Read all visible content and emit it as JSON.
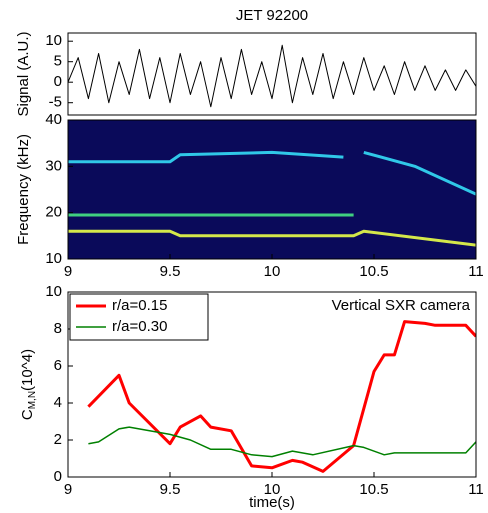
{
  "chart_data": [
    {
      "type": "line",
      "title": "JET 92200",
      "ylabel": "Signal (A.U.)",
      "xlim": [
        9,
        11
      ],
      "ylim": [
        -8,
        12
      ],
      "yticks": [
        -5,
        0,
        5,
        10
      ],
      "series": [
        {
          "color": "#000000",
          "x": [
            9,
            9.05,
            9.1,
            9.15,
            9.2,
            9.25,
            9.3,
            9.35,
            9.4,
            9.45,
            9.5,
            9.55,
            9.6,
            9.65,
            9.7,
            9.75,
            9.8,
            9.85,
            9.9,
            9.95,
            10,
            10.05,
            10.1,
            10.15,
            10.2,
            10.25,
            10.3,
            10.35,
            10.4,
            10.45,
            10.5,
            10.55,
            10.6,
            10.65,
            10.7,
            10.75,
            10.8,
            10.85,
            10.9,
            10.95,
            11
          ],
          "values": [
            0,
            6,
            -4,
            7,
            -5,
            5,
            -3,
            8,
            -4,
            6,
            -5,
            7,
            -3,
            5,
            -6,
            6,
            -4,
            8,
            -3,
            5,
            -4,
            9,
            -5,
            6,
            -3,
            7,
            -4,
            5,
            -3,
            6,
            -2,
            4,
            -3,
            5,
            -2,
            4,
            -2,
            3,
            -2,
            3,
            -1
          ]
        }
      ]
    },
    {
      "type": "spectrogram",
      "ylabel": "Frequency (kHz)",
      "xlim": [
        9,
        11
      ],
      "ylim": [
        10,
        40
      ],
      "yticks": [
        10,
        20,
        30,
        40
      ],
      "xticks": [
        9,
        9.5,
        10,
        10.5,
        11
      ],
      "background": "#0a0a5a",
      "series": [
        {
          "color": "#d4e84a",
          "x": [
            9,
            9.5,
            9.55,
            10.4,
            10.45,
            11
          ],
          "values": [
            16,
            16,
            15,
            15,
            16,
            13
          ]
        },
        {
          "color": "#40d080",
          "x": [
            9,
            9.5,
            9.55,
            10.4
          ],
          "values": [
            19.5,
            19.5,
            19.5,
            19.5
          ]
        },
        {
          "color": "#30c8e8",
          "x": [
            9,
            9.5,
            9.55,
            10,
            10.35
          ],
          "values": [
            31,
            31,
            32.5,
            33,
            32
          ]
        },
        {
          "color": "#30c8e8",
          "x": [
            10.45,
            10.7,
            11
          ],
          "values": [
            33,
            30,
            24
          ]
        }
      ]
    },
    {
      "type": "line",
      "ylabel": "C",
      "ylabel_sub": "M,N",
      "ylabel_rest": "(10^4)",
      "xlabel": "time(s)",
      "annotation": "Vertical SXR camera",
      "xlim": [
        9,
        11
      ],
      "ylim": [
        0,
        10
      ],
      "xticks": [
        9,
        9.5,
        10,
        10.5,
        11
      ],
      "yticks": [
        0,
        2,
        4,
        6,
        8,
        10
      ],
      "legend": "upper-left",
      "series": [
        {
          "name": "r/a=0.15",
          "color": "#ff0000",
          "width": 3,
          "x": [
            9.1,
            9.25,
            9.3,
            9.5,
            9.55,
            9.65,
            9.7,
            9.8,
            9.9,
            10.0,
            10.1,
            10.15,
            10.25,
            10.4,
            10.5,
            10.55,
            10.6,
            10.65,
            10.75,
            10.8,
            10.95,
            11.0
          ],
          "values": [
            3.8,
            5.5,
            4.0,
            1.8,
            2.7,
            3.3,
            2.7,
            2.5,
            0.6,
            0.5,
            0.9,
            0.8,
            0.3,
            1.7,
            5.7,
            6.6,
            6.6,
            8.4,
            8.3,
            8.2,
            8.2,
            7.6
          ]
        },
        {
          "name": "r/a=0.30",
          "color": "#008000",
          "width": 1.5,
          "x": [
            9.1,
            9.15,
            9.25,
            9.3,
            9.5,
            9.6,
            9.7,
            9.8,
            9.9,
            10.0,
            10.1,
            10.2,
            10.4,
            10.45,
            10.55,
            10.6,
            10.8,
            10.95,
            11.0
          ],
          "values": [
            1.8,
            1.9,
            2.6,
            2.7,
            2.3,
            2.0,
            1.5,
            1.5,
            1.2,
            1.1,
            1.4,
            1.2,
            1.7,
            1.6,
            1.2,
            1.3,
            1.3,
            1.3,
            1.9
          ]
        }
      ]
    }
  ]
}
